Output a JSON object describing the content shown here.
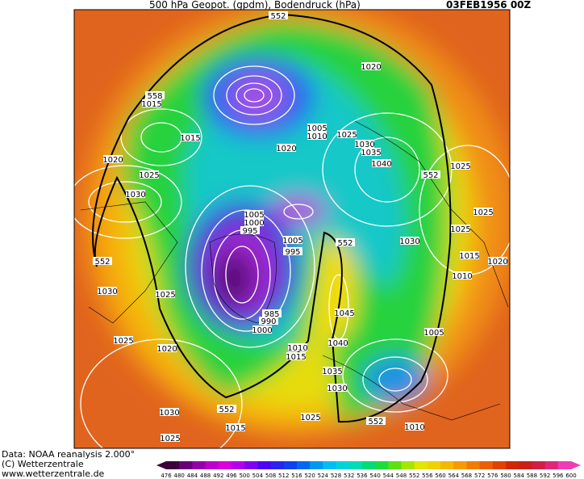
{
  "header": {
    "title": "500 hPa Geopot. (gpdm), Bodendruck (hPa)",
    "date": "03FEB1956 00Z"
  },
  "map": {
    "labels": [
      552,
      1020,
      558,
      1015,
      1015,
      1005,
      1010,
      1025,
      1030,
      1020,
      1035,
      1040,
      552,
      1025,
      1020,
      1025,
      1030,
      1005,
      1000,
      995,
      552,
      1030,
      1025,
      1025,
      1005,
      995,
      1015,
      1020,
      552,
      1010,
      1030,
      1025,
      1045,
      985,
      990,
      1000,
      1005,
      1025,
      1020,
      1010,
      1015,
      1040,
      1035,
      1030,
      552,
      1030,
      1015,
      1025,
      552,
      1010,
      1025
    ]
  },
  "footer": {
    "source": "Data: NOAA reanalysis 2.000°",
    "copyright": "(C) Wetterzentrale",
    "url": "www.wetterzentrale.de"
  },
  "colorbar": {
    "ticks": [
      476,
      480,
      484,
      488,
      492,
      496,
      500,
      504,
      508,
      512,
      516,
      520,
      524,
      528,
      532,
      536,
      540,
      544,
      548,
      552,
      556,
      560,
      564,
      568,
      572,
      576,
      580,
      584,
      588,
      592,
      596,
      600
    ]
  }
}
